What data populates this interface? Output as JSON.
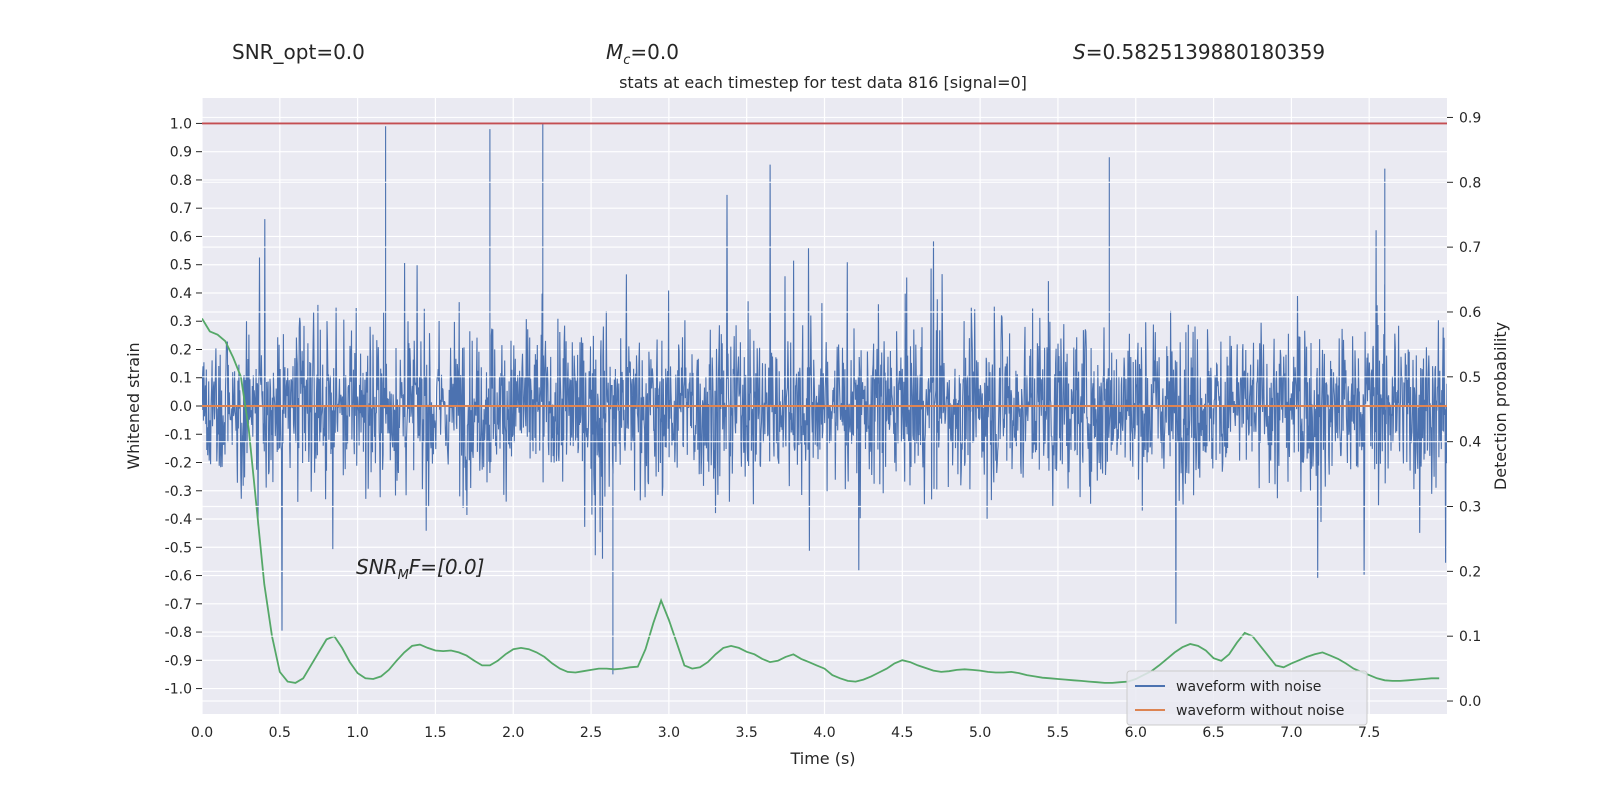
{
  "header": {
    "snr_opt": "SNR_opt=0.0",
    "mc_symbol": "M",
    "mc_sub": "c",
    "mc_value": "=0.0",
    "s_symbol": "S",
    "s_value": "=0.5825139880180359"
  },
  "annotation": {
    "symbol": "SNR",
    "sub": "M",
    "rest": "F=[0.0]"
  },
  "chart_data": {
    "type": "line",
    "title": "stats at each timestep for test data 816 [signal=0]",
    "xlabel": "Time (s)",
    "ylabel": "Whitened strain",
    "y2label": "Detection probability",
    "xlim": [
      0.0,
      8.0
    ],
    "ylim": [
      -1.09,
      1.09
    ],
    "y2lim": [
      -0.02,
      0.93
    ],
    "xticks": [
      "0.0",
      "0.5",
      "1.0",
      "1.5",
      "2.0",
      "2.5",
      "3.0",
      "3.5",
      "4.0",
      "4.5",
      "5.0",
      "5.5",
      "6.0",
      "6.5",
      "7.0",
      "7.5"
    ],
    "yticks": [
      "1.0",
      "0.9",
      "0.8",
      "0.7",
      "0.6",
      "0.5",
      "0.4",
      "0.3",
      "0.2",
      "0.1",
      "0.0",
      "-0.1",
      "-0.2",
      "-0.3",
      "-0.4",
      "-0.5",
      "-0.6",
      "-0.7",
      "-0.8",
      "-0.9",
      "-1.0"
    ],
    "y2ticks": [
      "0.9",
      "0.8",
      "0.7",
      "0.6",
      "0.5",
      "0.4",
      "0.3",
      "0.2",
      "0.1",
      "0.0"
    ],
    "threshold": 1.0,
    "grid": true,
    "legend_position": "lower-right",
    "series": [
      {
        "name": "waveform with noise",
        "color": "#4c72b0",
        "axis": "left",
        "description": "dense noise, amplitude typically within ±0.3 with spikes",
        "peaks": [
          {
            "x": 1.18,
            "y": 0.99
          },
          {
            "x": 1.85,
            "y": 0.98
          },
          {
            "x": 2.19,
            "y": 1.0
          },
          {
            "x": 2.64,
            "y": -0.95
          },
          {
            "x": 5.83,
            "y": 0.88
          },
          {
            "x": 7.6,
            "y": 0.84
          }
        ]
      },
      {
        "name": "waveform without noise",
        "color": "#dd8452",
        "axis": "left",
        "x": [
          0.0,
          8.0
        ],
        "y": [
          0.0,
          0.0
        ]
      },
      {
        "color": "#55a868",
        "axis": "right",
        "x": [
          0.0,
          0.05,
          0.1,
          0.15,
          0.2,
          0.25,
          0.3,
          0.35,
          0.4,
          0.45,
          0.5,
          0.55,
          0.6,
          0.65,
          0.7,
          0.75,
          0.8,
          0.85,
          0.9,
          0.95,
          1.0,
          1.05,
          1.1,
          1.15,
          1.2,
          1.25,
          1.3,
          1.35,
          1.4,
          1.45,
          1.5,
          1.55,
          1.6,
          1.65,
          1.7,
          1.75,
          1.8,
          1.85,
          1.9,
          1.95,
          2.0,
          2.05,
          2.1,
          2.15,
          2.2,
          2.25,
          2.3,
          2.35,
          2.4,
          2.45,
          2.5,
          2.55,
          2.6,
          2.65,
          2.7,
          2.75,
          2.8,
          2.85,
          2.9,
          2.95,
          3.0,
          3.05,
          3.1,
          3.15,
          3.2,
          3.25,
          3.3,
          3.35,
          3.4,
          3.45,
          3.5,
          3.55,
          3.6,
          3.65,
          3.7,
          3.75,
          3.8,
          3.85,
          3.9,
          3.95,
          4.0,
          4.05,
          4.1,
          4.15,
          4.2,
          4.25,
          4.3,
          4.35,
          4.4,
          4.45,
          4.5,
          4.55,
          4.6,
          4.65,
          4.7,
          4.75,
          4.8,
          4.85,
          4.9,
          4.95,
          5.0,
          5.05,
          5.1,
          5.15,
          5.2,
          5.25,
          5.3,
          5.35,
          5.4,
          5.45,
          5.5,
          5.55,
          5.6,
          5.65,
          5.7,
          5.75,
          5.8,
          5.85,
          5.9,
          5.95,
          6.0,
          6.05,
          6.1,
          6.15,
          6.2,
          6.25,
          6.3,
          6.35,
          6.4,
          6.45,
          6.5,
          6.55,
          6.6,
          6.65,
          6.7,
          6.75,
          6.8,
          6.85,
          6.9,
          6.95,
          7.0,
          7.05,
          7.1,
          7.15,
          7.2,
          7.25,
          7.3,
          7.35,
          7.4,
          7.45,
          7.5,
          7.55,
          7.6,
          7.65,
          7.7,
          7.75,
          7.8,
          7.85,
          7.9,
          7.95
        ],
        "y": [
          0.59,
          0.57,
          0.565,
          0.555,
          0.53,
          0.5,
          0.42,
          0.3,
          0.18,
          0.1,
          0.045,
          0.03,
          0.028,
          0.035,
          0.055,
          0.075,
          0.095,
          0.1,
          0.082,
          0.06,
          0.043,
          0.035,
          0.034,
          0.038,
          0.048,
          0.062,
          0.075,
          0.085,
          0.087,
          0.082,
          0.078,
          0.077,
          0.078,
          0.075,
          0.07,
          0.062,
          0.055,
          0.055,
          0.062,
          0.072,
          0.08,
          0.082,
          0.08,
          0.075,
          0.068,
          0.058,
          0.05,
          0.045,
          0.044,
          0.046,
          0.048,
          0.05,
          0.05,
          0.049,
          0.05,
          0.052,
          0.053,
          0.08,
          0.12,
          0.155,
          0.125,
          0.09,
          0.055,
          0.05,
          0.052,
          0.06,
          0.072,
          0.082,
          0.085,
          0.082,
          0.076,
          0.072,
          0.065,
          0.06,
          0.062,
          0.068,
          0.072,
          0.065,
          0.06,
          0.055,
          0.05,
          0.04,
          0.035,
          0.031,
          0.03,
          0.033,
          0.038,
          0.044,
          0.05,
          0.058,
          0.063,
          0.06,
          0.055,
          0.051,
          0.047,
          0.045,
          0.046,
          0.048,
          0.049,
          0.048,
          0.047,
          0.045,
          0.044,
          0.044,
          0.045,
          0.043,
          0.04,
          0.038,
          0.036,
          0.035,
          0.034,
          0.033,
          0.032,
          0.031,
          0.03,
          0.029,
          0.028,
          0.028,
          0.029,
          0.03,
          0.034,
          0.04,
          0.046,
          0.055,
          0.065,
          0.075,
          0.083,
          0.088,
          0.085,
          0.078,
          0.066,
          0.062,
          0.072,
          0.09,
          0.105,
          0.1,
          0.085,
          0.07,
          0.055,
          0.052,
          0.058,
          0.063,
          0.068,
          0.072,
          0.075,
          0.07,
          0.065,
          0.058,
          0.05,
          0.045,
          0.04,
          0.035,
          0.032,
          0.031,
          0.031,
          0.032,
          0.033,
          0.034,
          0.035,
          0.035
        ]
      }
    ]
  }
}
